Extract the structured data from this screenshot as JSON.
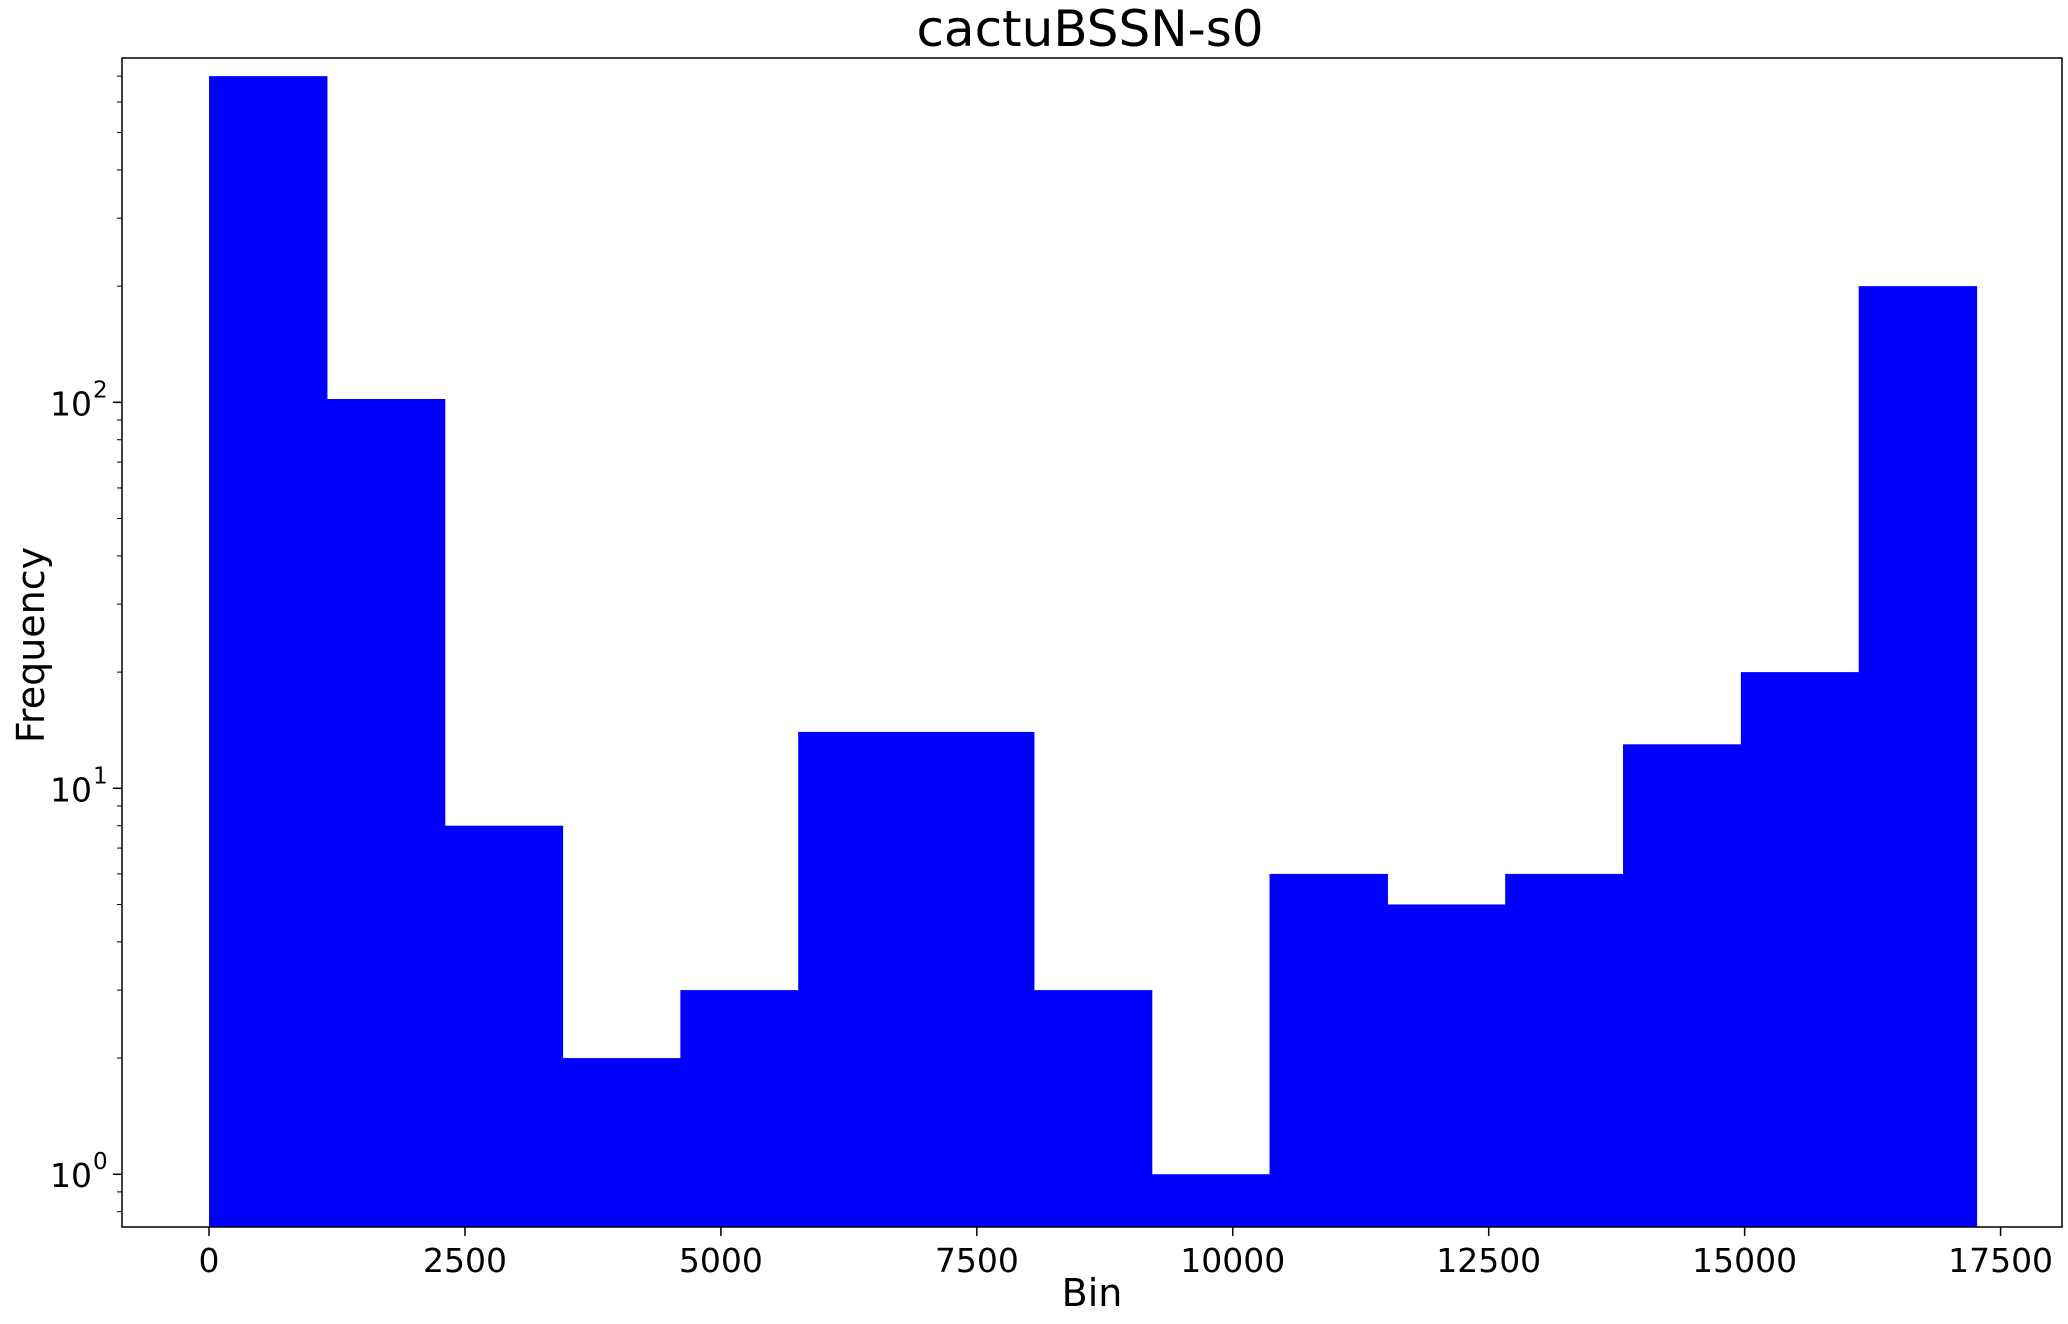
{
  "chart_data": {
    "type": "bar",
    "title": "cactuBSSN-s0",
    "xlabel": "Bin",
    "ylabel": "Frequency",
    "y_scale": "log",
    "xlim": [
      -850,
      18100
    ],
    "ylim": [
      0.73,
      780
    ],
    "x_ticks": [
      0,
      2500,
      5000,
      7500,
      10000,
      12500,
      15000,
      17500
    ],
    "y_ticks": [
      {
        "value": 1,
        "base": "10",
        "exp": "0"
      },
      {
        "value": 10,
        "base": "10",
        "exp": "1"
      },
      {
        "value": 100,
        "base": "10",
        "exp": "2"
      }
    ],
    "bar_color": "#0000ff",
    "grid": false,
    "legend": false,
    "bin_edges": [
      0,
      1151,
      2302,
      3453,
      4604,
      5755,
      6906,
      8057,
      9208,
      10359,
      11510,
      12661,
      13812,
      14963,
      16114,
      17265
    ],
    "values": [
      700,
      102,
      8,
      2,
      3,
      14,
      14,
      3,
      1,
      6,
      5,
      6,
      13,
      20,
      200
    ]
  }
}
